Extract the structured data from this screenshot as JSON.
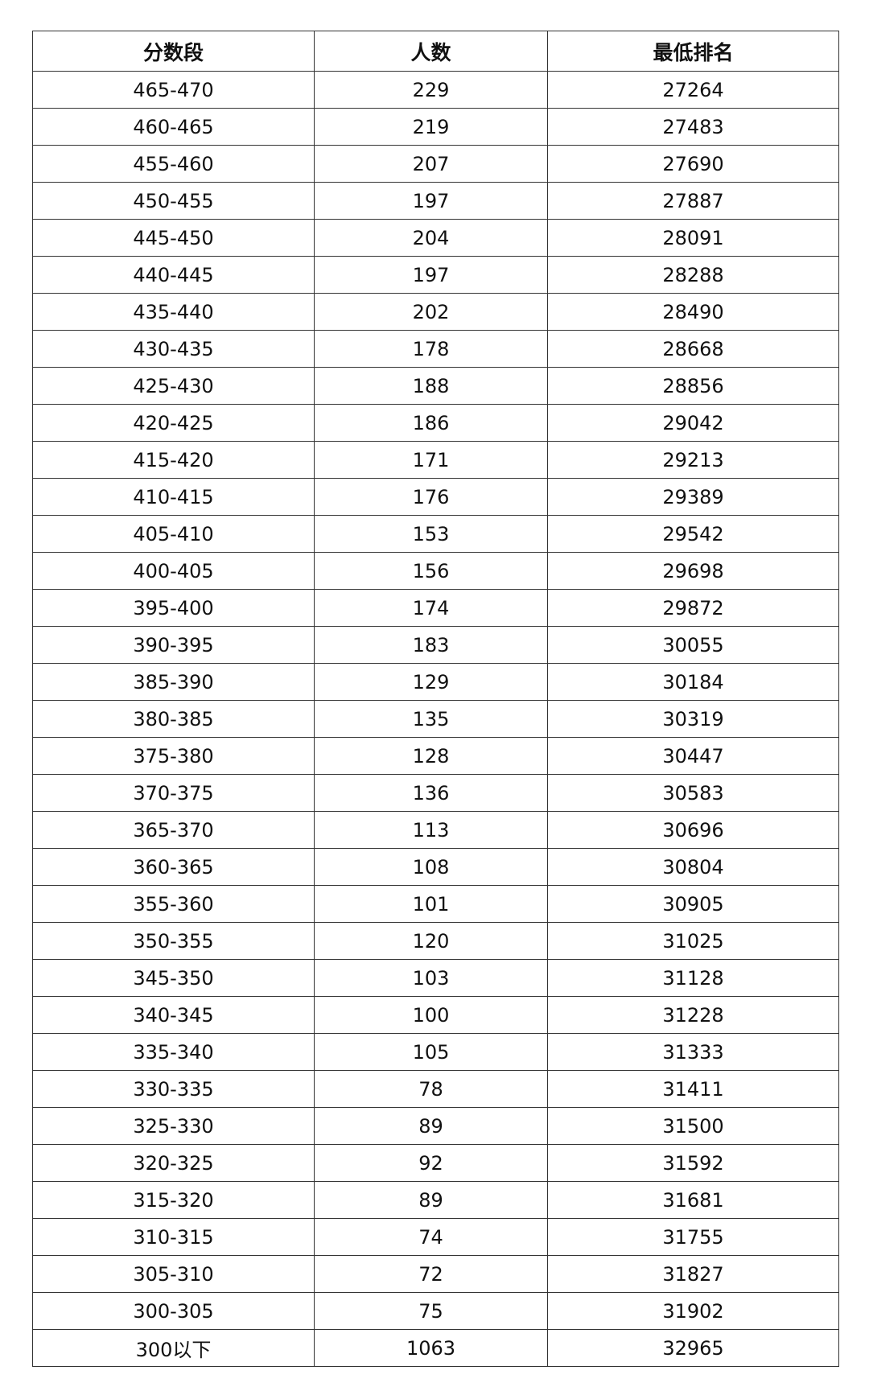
{
  "table": {
    "headers": [
      "分数段",
      "人数",
      "最低排名"
    ],
    "rows": [
      [
        "465-470",
        "229",
        "27264"
      ],
      [
        "460-465",
        "219",
        "27483"
      ],
      [
        "455-460",
        "207",
        "27690"
      ],
      [
        "450-455",
        "197",
        "27887"
      ],
      [
        "445-450",
        "204",
        "28091"
      ],
      [
        "440-445",
        "197",
        "28288"
      ],
      [
        "435-440",
        "202",
        "28490"
      ],
      [
        "430-435",
        "178",
        "28668"
      ],
      [
        "425-430",
        "188",
        "28856"
      ],
      [
        "420-425",
        "186",
        "29042"
      ],
      [
        "415-420",
        "171",
        "29213"
      ],
      [
        "410-415",
        "176",
        "29389"
      ],
      [
        "405-410",
        "153",
        "29542"
      ],
      [
        "400-405",
        "156",
        "29698"
      ],
      [
        "395-400",
        "174",
        "29872"
      ],
      [
        "390-395",
        "183",
        "30055"
      ],
      [
        "385-390",
        "129",
        "30184"
      ],
      [
        "380-385",
        "135",
        "30319"
      ],
      [
        "375-380",
        "128",
        "30447"
      ],
      [
        "370-375",
        "136",
        "30583"
      ],
      [
        "365-370",
        "113",
        "30696"
      ],
      [
        "360-365",
        "108",
        "30804"
      ],
      [
        "355-360",
        "101",
        "30905"
      ],
      [
        "350-355",
        "120",
        "31025"
      ],
      [
        "345-350",
        "103",
        "31128"
      ],
      [
        "340-345",
        "100",
        "31228"
      ],
      [
        "335-340",
        "105",
        "31333"
      ],
      [
        "330-335",
        "78",
        "31411"
      ],
      [
        "325-330",
        "89",
        "31500"
      ],
      [
        "320-325",
        "92",
        "31592"
      ],
      [
        "315-320",
        "89",
        "31681"
      ],
      [
        "310-315",
        "74",
        "31755"
      ],
      [
        "305-310",
        "72",
        "31827"
      ],
      [
        "300-305",
        "75",
        "31902"
      ],
      [
        "300以下",
        "1063",
        "32965"
      ]
    ]
  }
}
